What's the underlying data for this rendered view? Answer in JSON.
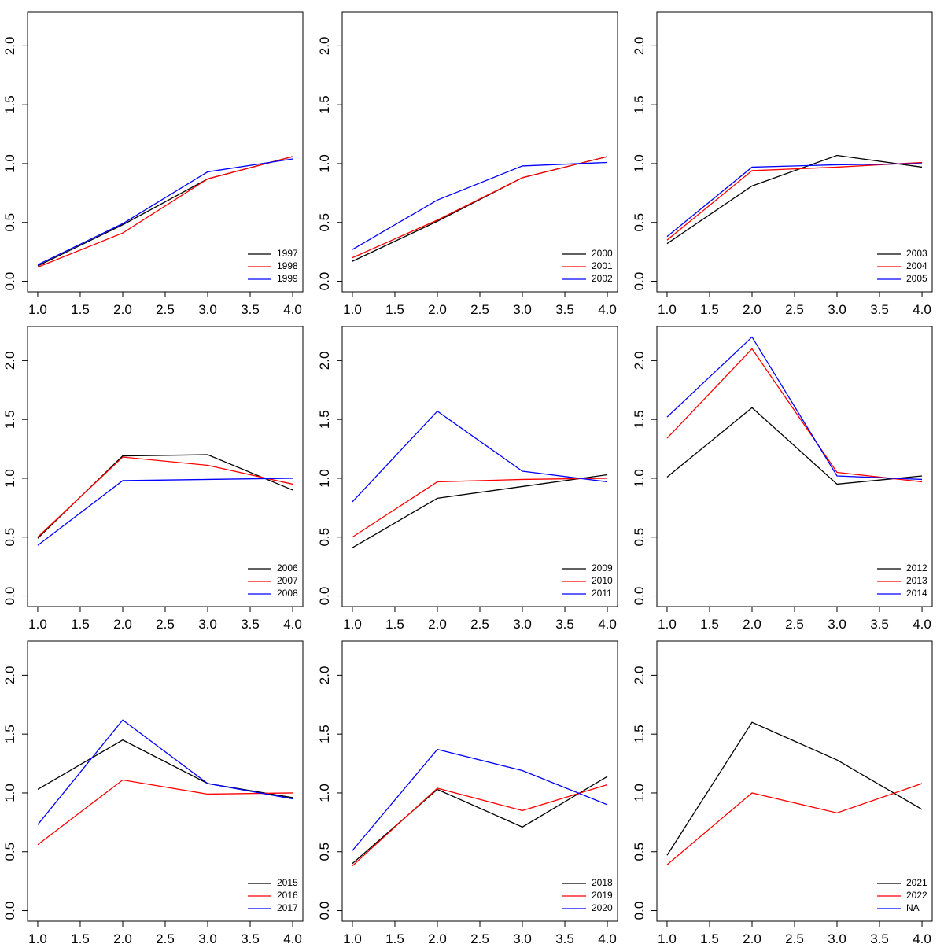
{
  "chart_data": [
    {
      "type": "line",
      "x": [
        1,
        2,
        3,
        4
      ],
      "xlim": [
        0.88,
        4.12
      ],
      "ylim": [
        -0.09,
        2.29
      ],
      "legend": "bottomright",
      "xticks": [
        {
          "value": 1,
          "label": "1.0"
        },
        {
          "value": 1.5,
          "label": "1.5"
        },
        {
          "value": 2,
          "label": "2.0"
        },
        {
          "value": 2.5,
          "label": "2.5"
        },
        {
          "value": 3,
          "label": "3.0"
        },
        {
          "value": 3.5,
          "label": "3.5"
        },
        {
          "value": 4,
          "label": "4.0"
        }
      ],
      "yticks": [
        {
          "value": 0,
          "label": "0.0"
        },
        {
          "value": 0.5,
          "label": "0.5"
        },
        {
          "value": 1,
          "label": "1.0"
        },
        {
          "value": 1.5,
          "label": "1.5"
        },
        {
          "value": 2,
          "label": "2.0"
        }
      ],
      "series": [
        {
          "name": "1997",
          "color": "#000000",
          "values": [
            0.13,
            0.48,
            0.87,
            1.06
          ]
        },
        {
          "name": "1998",
          "color": "#ff0000",
          "values": [
            0.12,
            0.41,
            0.87,
            1.06
          ]
        },
        {
          "name": "1999",
          "color": "#0000ff",
          "values": [
            0.14,
            0.49,
            0.93,
            1.04
          ]
        }
      ]
    },
    {
      "type": "line",
      "x": [
        1,
        2,
        3,
        4
      ],
      "xlim": [
        0.88,
        4.12
      ],
      "ylim": [
        -0.09,
        2.29
      ],
      "legend": "bottomright",
      "xticks": [
        {
          "value": 1,
          "label": "1.0"
        },
        {
          "value": 1.5,
          "label": "1.5"
        },
        {
          "value": 2,
          "label": "2.0"
        },
        {
          "value": 2.5,
          "label": "2.5"
        },
        {
          "value": 3,
          "label": "3.0"
        },
        {
          "value": 3.5,
          "label": "3.5"
        },
        {
          "value": 4,
          "label": "4.0"
        }
      ],
      "yticks": [
        {
          "value": 0,
          "label": "0.0"
        },
        {
          "value": 0.5,
          "label": "0.5"
        },
        {
          "value": 1,
          "label": "1.0"
        },
        {
          "value": 1.5,
          "label": "1.5"
        },
        {
          "value": 2,
          "label": "2.0"
        }
      ],
      "series": [
        {
          "name": "2000",
          "color": "#000000",
          "values": [
            0.17,
            0.51,
            0.88,
            1.06
          ]
        },
        {
          "name": "2001",
          "color": "#ff0000",
          "values": [
            0.2,
            0.52,
            0.88,
            1.06
          ]
        },
        {
          "name": "2002",
          "color": "#0000ff",
          "values": [
            0.27,
            0.69,
            0.98,
            1.01
          ]
        }
      ]
    },
    {
      "type": "line",
      "x": [
        1,
        2,
        3,
        4
      ],
      "xlim": [
        0.88,
        4.12
      ],
      "ylim": [
        -0.09,
        2.29
      ],
      "legend": "bottomright",
      "xticks": [
        {
          "value": 1,
          "label": "1.0"
        },
        {
          "value": 1.5,
          "label": "1.5"
        },
        {
          "value": 2,
          "label": "2.0"
        },
        {
          "value": 2.5,
          "label": "2.5"
        },
        {
          "value": 3,
          "label": "3.0"
        },
        {
          "value": 3.5,
          "label": "3.5"
        },
        {
          "value": 4,
          "label": "4.0"
        }
      ],
      "yticks": [
        {
          "value": 0,
          "label": "0.0"
        },
        {
          "value": 0.5,
          "label": "0.5"
        },
        {
          "value": 1,
          "label": "1.0"
        },
        {
          "value": 1.5,
          "label": "1.5"
        },
        {
          "value": 2,
          "label": "2.0"
        }
      ],
      "series": [
        {
          "name": "2003",
          "color": "#000000",
          "values": [
            0.32,
            0.81,
            1.07,
            0.97
          ]
        },
        {
          "name": "2004",
          "color": "#ff0000",
          "values": [
            0.35,
            0.94,
            0.97,
            1.01
          ]
        },
        {
          "name": "2005",
          "color": "#0000ff",
          "values": [
            0.38,
            0.97,
            0.99,
            1.0
          ]
        }
      ]
    },
    {
      "type": "line",
      "x": [
        1,
        2,
        3,
        4
      ],
      "xlim": [
        0.88,
        4.12
      ],
      "ylim": [
        -0.09,
        2.29
      ],
      "legend": "bottomright",
      "xticks": [
        {
          "value": 1,
          "label": "1.0"
        },
        {
          "value": 1.5,
          "label": "1.5"
        },
        {
          "value": 2,
          "label": "2.0"
        },
        {
          "value": 2.5,
          "label": "2.5"
        },
        {
          "value": 3,
          "label": "3.0"
        },
        {
          "value": 3.5,
          "label": "3.5"
        },
        {
          "value": 4,
          "label": "4.0"
        }
      ],
      "yticks": [
        {
          "value": 0,
          "label": "0.0"
        },
        {
          "value": 0.5,
          "label": "0.5"
        },
        {
          "value": 1,
          "label": "1.0"
        },
        {
          "value": 1.5,
          "label": "1.5"
        },
        {
          "value": 2,
          "label": "2.0"
        }
      ],
      "series": [
        {
          "name": "2006",
          "color": "#000000",
          "values": [
            0.49,
            1.19,
            1.2,
            0.9
          ]
        },
        {
          "name": "2007",
          "color": "#ff0000",
          "values": [
            0.5,
            1.18,
            1.11,
            0.95
          ]
        },
        {
          "name": "2008",
          "color": "#0000ff",
          "values": [
            0.43,
            0.98,
            0.99,
            1.0
          ]
        }
      ]
    },
    {
      "type": "line",
      "x": [
        1,
        2,
        3,
        4
      ],
      "xlim": [
        0.88,
        4.12
      ],
      "ylim": [
        -0.09,
        2.29
      ],
      "legend": "bottomright",
      "xticks": [
        {
          "value": 1,
          "label": "1.0"
        },
        {
          "value": 1.5,
          "label": "1.5"
        },
        {
          "value": 2,
          "label": "2.0"
        },
        {
          "value": 2.5,
          "label": "2.5"
        },
        {
          "value": 3,
          "label": "3.0"
        },
        {
          "value": 3.5,
          "label": "3.5"
        },
        {
          "value": 4,
          "label": "4.0"
        }
      ],
      "yticks": [
        {
          "value": 0,
          "label": "0.0"
        },
        {
          "value": 0.5,
          "label": "0.5"
        },
        {
          "value": 1,
          "label": "1.0"
        },
        {
          "value": 1.5,
          "label": "1.5"
        },
        {
          "value": 2,
          "label": "2.0"
        }
      ],
      "series": [
        {
          "name": "2009",
          "color": "#000000",
          "values": [
            0.41,
            0.83,
            0.93,
            1.03
          ]
        },
        {
          "name": "2010",
          "color": "#ff0000",
          "values": [
            0.5,
            0.97,
            0.99,
            1.0
          ]
        },
        {
          "name": "2011",
          "color": "#0000ff",
          "values": [
            0.8,
            1.57,
            1.06,
            0.97
          ]
        }
      ]
    },
    {
      "type": "line",
      "x": [
        1,
        2,
        3,
        4
      ],
      "xlim": [
        0.88,
        4.12
      ],
      "ylim": [
        -0.09,
        2.29
      ],
      "legend": "bottomright",
      "xticks": [
        {
          "value": 1,
          "label": "1.0"
        },
        {
          "value": 1.5,
          "label": "1.5"
        },
        {
          "value": 2,
          "label": "2.0"
        },
        {
          "value": 2.5,
          "label": "2.5"
        },
        {
          "value": 3,
          "label": "3.0"
        },
        {
          "value": 3.5,
          "label": "3.5"
        },
        {
          "value": 4,
          "label": "4.0"
        }
      ],
      "yticks": [
        {
          "value": 0,
          "label": "0.0"
        },
        {
          "value": 0.5,
          "label": "0.5"
        },
        {
          "value": 1,
          "label": "1.0"
        },
        {
          "value": 1.5,
          "label": "1.5"
        },
        {
          "value": 2,
          "label": "2.0"
        }
      ],
      "series": [
        {
          "name": "2012",
          "color": "#000000",
          "values": [
            1.01,
            1.6,
            0.95,
            1.02
          ]
        },
        {
          "name": "2013",
          "color": "#ff0000",
          "values": [
            1.34,
            2.1,
            1.05,
            0.97
          ]
        },
        {
          "name": "2014",
          "color": "#0000ff",
          "values": [
            1.52,
            2.2,
            1.02,
            0.99
          ]
        }
      ]
    },
    {
      "type": "line",
      "x": [
        1,
        2,
        3,
        4
      ],
      "xlim": [
        0.88,
        4.12
      ],
      "ylim": [
        -0.09,
        2.29
      ],
      "legend": "bottomright",
      "xticks": [
        {
          "value": 1,
          "label": "1.0"
        },
        {
          "value": 1.5,
          "label": "1.5"
        },
        {
          "value": 2,
          "label": "2.0"
        },
        {
          "value": 2.5,
          "label": "2.5"
        },
        {
          "value": 3,
          "label": "3.0"
        },
        {
          "value": 3.5,
          "label": "3.5"
        },
        {
          "value": 4,
          "label": "4.0"
        }
      ],
      "yticks": [
        {
          "value": 0,
          "label": "0.0"
        },
        {
          "value": 0.5,
          "label": "0.5"
        },
        {
          "value": 1,
          "label": "1.0"
        },
        {
          "value": 1.5,
          "label": "1.5"
        },
        {
          "value": 2,
          "label": "2.0"
        }
      ],
      "series": [
        {
          "name": "2015",
          "color": "#000000",
          "values": [
            1.03,
            1.45,
            1.08,
            0.96
          ]
        },
        {
          "name": "2016",
          "color": "#ff0000",
          "values": [
            0.56,
            1.11,
            0.99,
            1.0
          ]
        },
        {
          "name": "2017",
          "color": "#0000ff",
          "values": [
            0.73,
            1.62,
            1.08,
            0.95
          ]
        }
      ]
    },
    {
      "type": "line",
      "x": [
        1,
        2,
        3,
        4
      ],
      "xlim": [
        0.88,
        4.12
      ],
      "ylim": [
        -0.09,
        2.29
      ],
      "legend": "bottomright",
      "xticks": [
        {
          "value": 1,
          "label": "1.0"
        },
        {
          "value": 1.5,
          "label": "1.5"
        },
        {
          "value": 2,
          "label": "2.0"
        },
        {
          "value": 2.5,
          "label": "2.5"
        },
        {
          "value": 3,
          "label": "3.0"
        },
        {
          "value": 3.5,
          "label": "3.5"
        },
        {
          "value": 4,
          "label": "4.0"
        }
      ],
      "yticks": [
        {
          "value": 0,
          "label": "0.0"
        },
        {
          "value": 0.5,
          "label": "0.5"
        },
        {
          "value": 1,
          "label": "1.0"
        },
        {
          "value": 1.5,
          "label": "1.5"
        },
        {
          "value": 2,
          "label": "2.0"
        }
      ],
      "series": [
        {
          "name": "2018",
          "color": "#000000",
          "values": [
            0.4,
            1.03,
            0.71,
            1.14
          ]
        },
        {
          "name": "2019",
          "color": "#ff0000",
          "values": [
            0.38,
            1.04,
            0.85,
            1.07
          ]
        },
        {
          "name": "2020",
          "color": "#0000ff",
          "values": [
            0.51,
            1.37,
            1.19,
            0.9
          ]
        }
      ]
    },
    {
      "type": "line",
      "x": [
        1,
        2,
        3,
        4
      ],
      "xlim": [
        0.88,
        4.12
      ],
      "ylim": [
        -0.09,
        2.29
      ],
      "legend": "bottomright",
      "xticks": [
        {
          "value": 1,
          "label": "1.0"
        },
        {
          "value": 1.5,
          "label": "1.5"
        },
        {
          "value": 2,
          "label": "2.0"
        },
        {
          "value": 2.5,
          "label": "2.5"
        },
        {
          "value": 3,
          "label": "3.0"
        },
        {
          "value": 3.5,
          "label": "3.5"
        },
        {
          "value": 4,
          "label": "4.0"
        }
      ],
      "yticks": [
        {
          "value": 0,
          "label": "0.0"
        },
        {
          "value": 0.5,
          "label": "0.5"
        },
        {
          "value": 1,
          "label": "1.0"
        },
        {
          "value": 1.5,
          "label": "1.5"
        },
        {
          "value": 2,
          "label": "2.0"
        }
      ],
      "series": [
        {
          "name": "2021",
          "color": "#000000",
          "values": [
            0.47,
            1.6,
            1.28,
            0.86
          ]
        },
        {
          "name": "2022",
          "color": "#ff0000",
          "values": [
            0.39,
            1.0,
            0.83,
            1.08
          ]
        },
        {
          "name": "NA",
          "color": "#0000ff",
          "values": [
            null,
            null,
            null,
            null
          ]
        }
      ]
    }
  ]
}
